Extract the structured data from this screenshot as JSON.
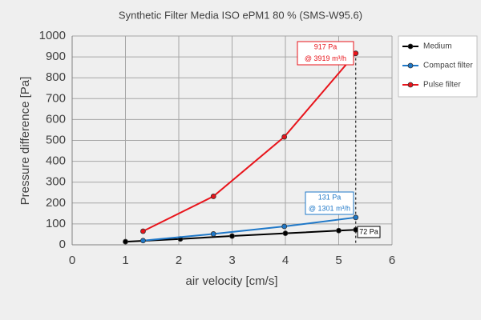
{
  "chart_data": {
    "type": "line",
    "title": "Synthetic Filter Media ISO ePM1 80 % (SMS-W95.6)",
    "x_label": "air velocity [cm/s]",
    "y_label": "Pressure difference [Pa]",
    "xlim": [
      0,
      6
    ],
    "xticks": [
      0,
      1,
      2,
      3,
      4,
      5,
      6
    ],
    "ylim": [
      0,
      1000
    ],
    "yticks": [
      0,
      100,
      200,
      300,
      400,
      500,
      600,
      700,
      800,
      900,
      1000
    ],
    "grid": true,
    "legend": "right",
    "series": [
      {
        "name": "Medium",
        "color": "#000000",
        "x": [
          1.0,
          2.03,
          3.0,
          4.0,
          5.0,
          5.32
        ],
        "values": [
          15,
          28,
          42,
          55,
          68,
          72
        ]
      },
      {
        "name": "Compact filter",
        "color": "#1f78c8",
        "x": [
          1.33,
          2.65,
          3.98,
          5.32
        ],
        "values": [
          20,
          52,
          88,
          131
        ]
      },
      {
        "name": "Pulse filter",
        "color": "#e8141b",
        "x": [
          1.33,
          2.65,
          3.98,
          5.32
        ],
        "values": [
          65,
          232,
          517,
          917
        ]
      }
    ],
    "annotations": [
      {
        "lines": [
          "917 Pa",
          "@ 3919 m³/h"
        ],
        "color": "#e8141b"
      },
      {
        "lines": [
          "131 Pa",
          "@ 1301 m³/h"
        ],
        "color": "#1f78c8"
      },
      {
        "lines": [
          "72 Pa"
        ],
        "color": "#000000"
      }
    ]
  }
}
